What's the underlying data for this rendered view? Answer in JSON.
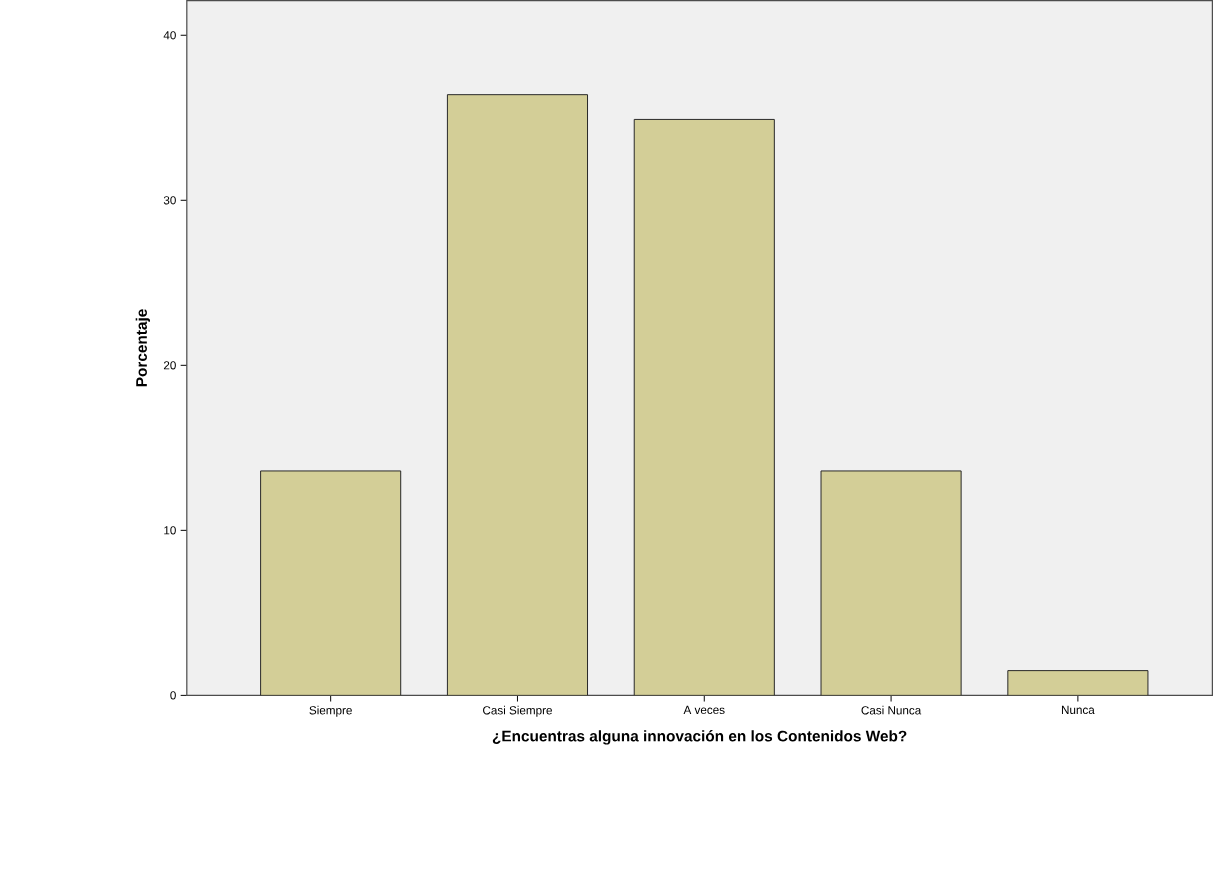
{
  "chart_data": {
    "type": "bar",
    "xlabel": "¿Encuentras alguna innovación en los Contenidos Web?",
    "ylabel": "Porcentaje",
    "categories": [
      "Siempre",
      "Casi Siempre",
      "A veces",
      "Casi Nunca",
      "Nunca"
    ],
    "values": [
      13.6,
      36.4,
      34.9,
      13.6,
      1.5
    ],
    "color": "#d3ce97",
    "ylim": [
      0,
      42.1
    ],
    "yticks": [
      0,
      10,
      20,
      30,
      40
    ],
    "grid": false
  }
}
